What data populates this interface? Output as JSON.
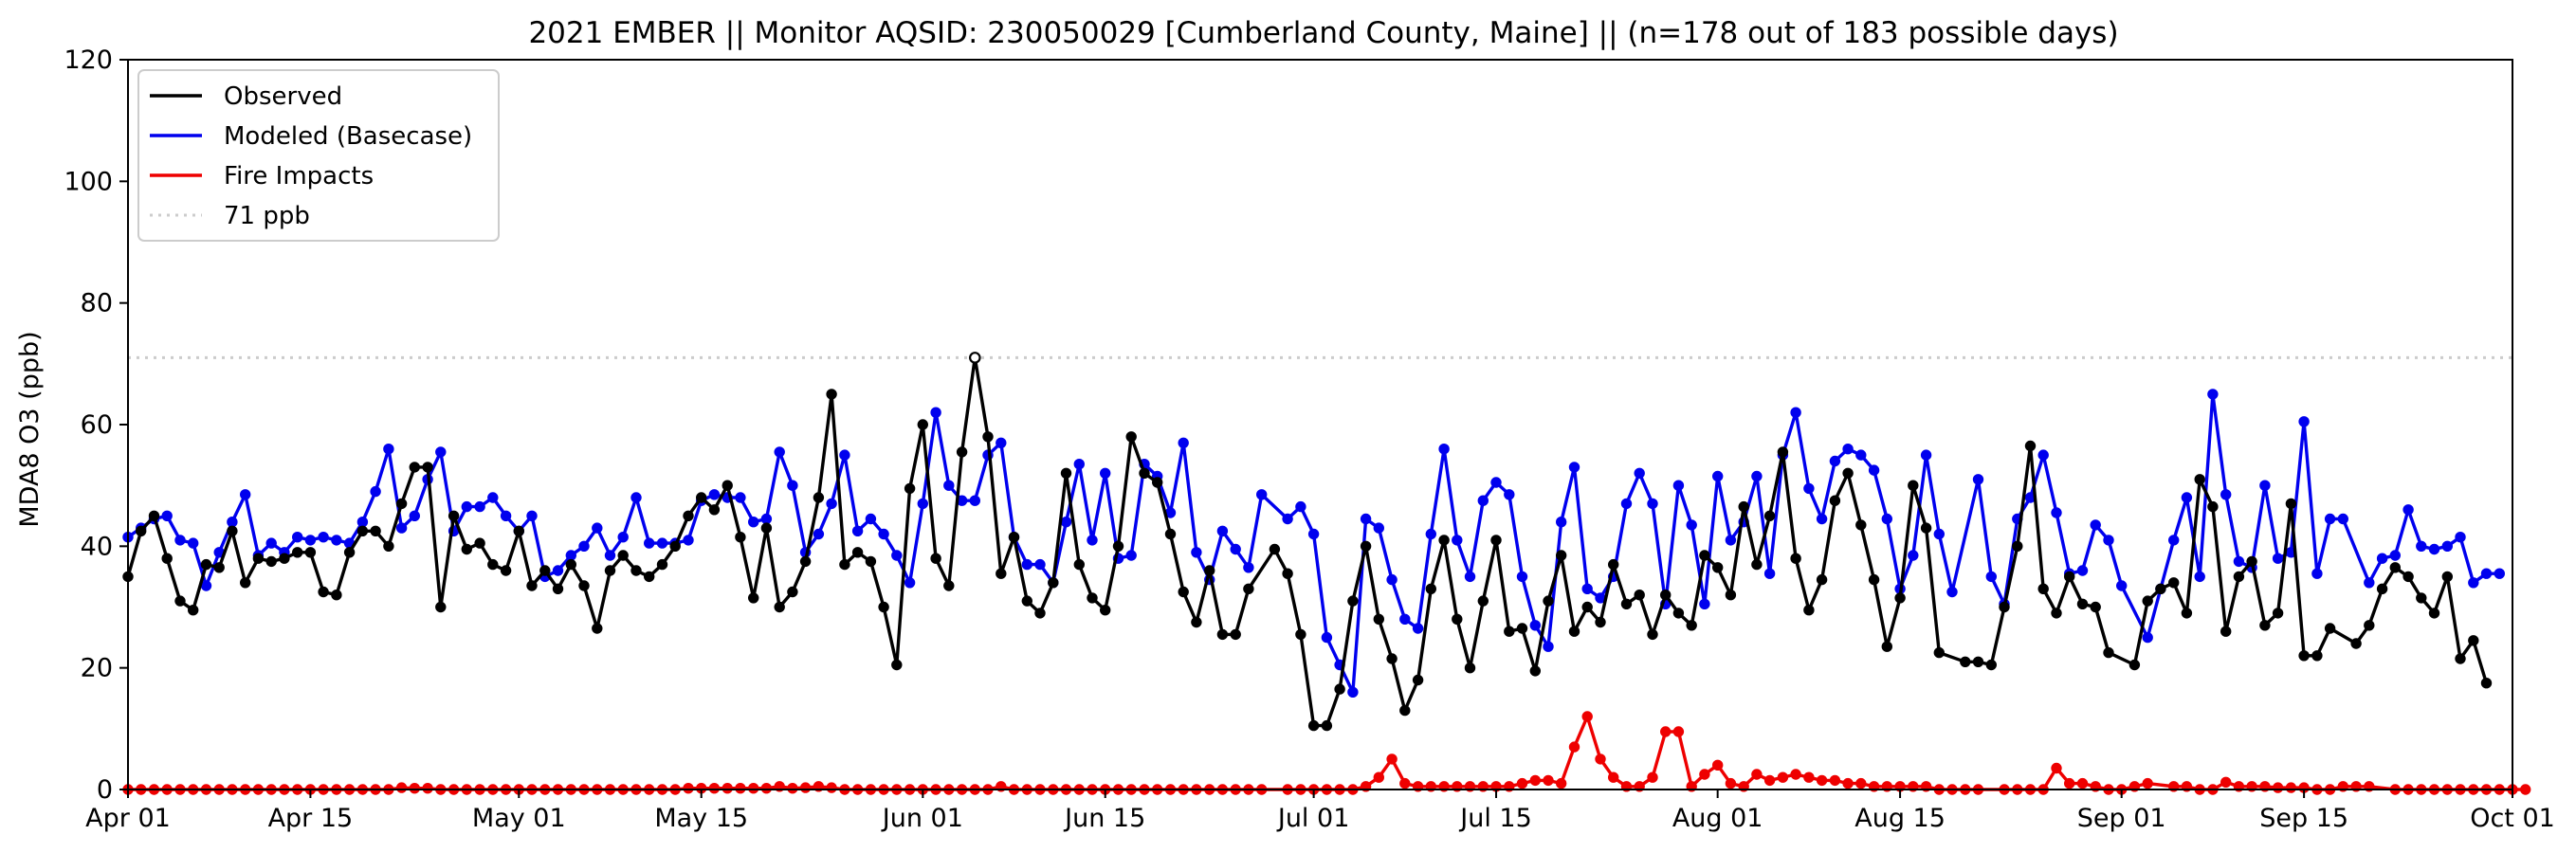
{
  "chart_data": {
    "type": "line",
    "title": "2021 EMBER || Monitor AQSID: 230050029 [Cumberland County, Maine] || (n=178 out of 183 possible days)",
    "xlabel": "",
    "ylabel": "MDA8 O3 (ppb)",
    "ylim": [
      0,
      120
    ],
    "yticks": [
      0,
      20,
      40,
      60,
      80,
      100,
      120
    ],
    "x_start": "2021-04-01",
    "xlim": [
      "2021-04-01",
      "2021-10-01"
    ],
    "xticks": [
      {
        "date": "2021-04-01",
        "label": "Apr 01"
      },
      {
        "date": "2021-04-15",
        "label": "Apr 15"
      },
      {
        "date": "2021-05-01",
        "label": "May 01"
      },
      {
        "date": "2021-05-15",
        "label": "May 15"
      },
      {
        "date": "2021-06-01",
        "label": "Jun 01"
      },
      {
        "date": "2021-06-15",
        "label": "Jun 15"
      },
      {
        "date": "2021-07-01",
        "label": "Jul 01"
      },
      {
        "date": "2021-07-15",
        "label": "Jul 15"
      },
      {
        "date": "2021-08-01",
        "label": "Aug 01"
      },
      {
        "date": "2021-08-15",
        "label": "Aug 15"
      },
      {
        "date": "2021-09-01",
        "label": "Sep 01"
      },
      {
        "date": "2021-09-15",
        "label": "Sep 15"
      },
      {
        "date": "2021-10-01",
        "label": "Oct 01"
      }
    ],
    "threshold": {
      "value": 71,
      "label": "71 ppb",
      "color": "#cccccc"
    },
    "legend": {
      "placement": "top-left"
    },
    "grid": false,
    "series": [
      {
        "name": "Observed",
        "color": "#000000",
        "values": [
          35,
          42.5,
          45,
          38,
          31,
          29.5,
          37,
          36.5,
          42.5,
          34,
          38,
          37.5,
          38,
          39,
          39,
          32.5,
          32,
          39,
          42.5,
          42.5,
          40,
          47,
          53,
          53,
          30,
          45,
          39.5,
          40.5,
          37,
          36,
          42.5,
          33.5,
          36,
          33,
          37,
          33.5,
          26.5,
          36,
          38.5,
          36,
          35,
          37,
          40,
          45,
          48,
          46,
          50,
          41.5,
          31.5,
          43,
          30,
          32.5,
          37.5,
          48,
          65,
          37,
          39,
          37.5,
          30,
          20.5,
          49.5,
          60,
          38,
          33.5,
          55.5,
          71,
          58,
          35.5,
          41.5,
          31,
          29,
          34,
          52,
          37,
          31.5,
          29.5,
          40,
          58,
          52,
          50.5,
          42,
          32.5,
          27.5,
          36,
          25.5,
          25.5,
          33,
          null,
          39.5,
          35.5,
          25.5,
          10.5,
          10.5,
          16.5,
          31,
          40,
          28,
          21.5,
          13,
          18,
          33,
          41,
          28,
          20,
          31,
          41,
          26,
          26.5,
          19.5,
          31,
          38.5,
          26,
          30,
          27.5,
          37,
          30.5,
          32,
          25.5,
          32,
          29,
          27,
          38.5,
          36.5,
          32,
          46.5,
          37,
          45,
          55.5,
          38,
          29.5,
          34.5,
          47.5,
          52,
          43.5,
          34.5,
          23.5,
          31.5,
          50,
          43,
          22.5,
          null,
          21,
          21,
          20.5,
          30,
          40,
          56.5,
          33,
          29,
          35,
          30.5,
          30,
          22.5,
          null,
          20.5,
          31,
          33,
          34,
          29,
          51,
          46.5,
          26,
          35,
          37.5,
          27,
          29,
          47,
          22,
          22,
          26.5,
          null,
          24,
          27,
          33,
          36.5,
          35,
          31.5,
          29,
          35,
          21.5,
          24.5,
          17.5
        ]
      },
      {
        "name": "Modeled (Basecase)",
        "color": "#0000ee",
        "values": [
          41.5,
          43,
          44.5,
          45,
          41,
          40.5,
          33.5,
          39,
          44,
          48.5,
          38.5,
          40.5,
          39,
          41.5,
          41,
          41.5,
          41,
          40.5,
          44,
          49,
          56,
          43,
          45,
          51,
          55.5,
          42.5,
          46.5,
          46.5,
          48,
          45,
          42.5,
          45,
          35,
          36,
          38.5,
          40,
          43,
          38.5,
          41.5,
          48,
          40.5,
          40.5,
          40.5,
          41,
          47.5,
          48.5,
          48,
          48,
          44,
          44.5,
          55.5,
          50,
          39,
          42,
          47,
          55,
          42.5,
          44.5,
          42,
          38.5,
          34,
          47,
          62,
          50,
          47.5,
          47.5,
          55,
          57,
          41.5,
          37,
          37,
          34,
          44,
          53.5,
          41,
          52,
          38,
          38.5,
          53.5,
          51.5,
          45.5,
          57,
          39,
          34.5,
          42.5,
          39.5,
          36.5,
          48.5,
          null,
          44.5,
          46.5,
          42,
          25,
          20.5,
          16,
          44.5,
          43,
          34.5,
          28,
          26.5,
          42,
          56,
          41,
          35,
          47.5,
          50.5,
          48.5,
          35,
          27,
          23.5,
          44,
          53,
          33,
          31.5,
          35,
          47,
          52,
          47,
          30.5,
          50,
          43.5,
          30.5,
          51.5,
          41,
          44,
          51.5,
          35.5,
          55,
          62,
          49.5,
          44.5,
          54,
          56,
          55,
          52.5,
          44.5,
          33,
          38.5,
          55,
          42,
          32.5,
          null,
          51,
          35,
          30.5,
          44.5,
          48,
          55,
          45.5,
          35.5,
          36,
          43.5,
          41,
          33.5,
          null,
          25,
          33,
          41,
          48,
          35,
          65,
          48.5,
          37.5,
          36.5,
          50,
          38,
          39,
          60.5,
          35.5,
          44.5,
          44.5,
          null,
          34,
          38,
          38.5,
          46,
          40,
          39.5,
          40,
          41.5,
          34,
          35.5,
          35.5
        ]
      },
      {
        "name": "Fire Impacts",
        "color": "#ee0000",
        "values": [
          0,
          0,
          0,
          0,
          0,
          0,
          0,
          0,
          0,
          0,
          0,
          0,
          0,
          0,
          0,
          0,
          0,
          0,
          0,
          0,
          0,
          0.3,
          0.2,
          0.2,
          0,
          0,
          0,
          0,
          0,
          0,
          0,
          0,
          0,
          0,
          0,
          0,
          0,
          0,
          0,
          0,
          0,
          0,
          0,
          0.2,
          0.2,
          0.2,
          0.2,
          0.2,
          0.2,
          0.2,
          0.5,
          0.2,
          0.3,
          0.5,
          0.3,
          0,
          0,
          0,
          0,
          0,
          0,
          0,
          0,
          0,
          0,
          0,
          0,
          0.5,
          0,
          0,
          0,
          0,
          0,
          0,
          0,
          0,
          0,
          0,
          0,
          0,
          0,
          0,
          0,
          0,
          0,
          0,
          0,
          0,
          null,
          0,
          0,
          0,
          0,
          0,
          0,
          0.5,
          2,
          5,
          1,
          0.5,
          0.5,
          0.5,
          0.5,
          0.5,
          0.5,
          0.5,
          0.5,
          1,
          1.5,
          1.5,
          1,
          7,
          12,
          5,
          2,
          0.5,
          0.5,
          2,
          9.5,
          9.5,
          0.5,
          2.5,
          4,
          1,
          0.5,
          2.5,
          1.5,
          2,
          2.5,
          2,
          1.5,
          1.5,
          1,
          1,
          0.5,
          0.5,
          0.5,
          0.5,
          0.5,
          0,
          0,
          0,
          0,
          null,
          0,
          0,
          0,
          0,
          3.5,
          1,
          1,
          0.5,
          0,
          0,
          0.5,
          1,
          null,
          0.5,
          0.5,
          0,
          0,
          1.2,
          0.5,
          0.5,
          0.5,
          0.3,
          0.3,
          0.3,
          0,
          0,
          0.5,
          0.5,
          0.5,
          null,
          0,
          0,
          0,
          0,
          0,
          0,
          0,
          0,
          0,
          0,
          0
        ]
      }
    ],
    "point_markers": {
      "hollow_max_observed": true
    }
  }
}
